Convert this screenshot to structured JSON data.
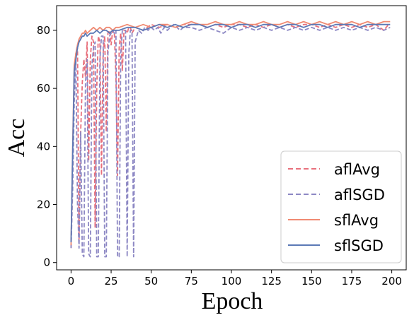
{
  "chart_data": {
    "type": "line",
    "title": "",
    "xlabel": "Epoch",
    "ylabel": "Acc",
    "xlim": [
      -9,
      209
    ],
    "ylim": [
      -2.5,
      88.5
    ],
    "xticks": [
      0,
      25,
      50,
      75,
      100,
      125,
      150,
      175,
      200
    ],
    "yticks": [
      0,
      20,
      40,
      60,
      80
    ],
    "grid": false,
    "legend_position": "lower-right",
    "series": [
      {
        "name": "aflAvg",
        "color": "#e8707c",
        "dash": "dashed",
        "points": [
          [
            0,
            5
          ],
          [
            1,
            30
          ],
          [
            2,
            60
          ],
          [
            3,
            72
          ],
          [
            4,
            75
          ],
          [
            5,
            8
          ],
          [
            6,
            45
          ],
          [
            7,
            62
          ],
          [
            8,
            70
          ],
          [
            9,
            64
          ],
          [
            10,
            76
          ],
          [
            11,
            35
          ],
          [
            12,
            70
          ],
          [
            13,
            78
          ],
          [
            14,
            76
          ],
          [
            15,
            12
          ],
          [
            16,
            60
          ],
          [
            17,
            78
          ],
          [
            18,
            76
          ],
          [
            19,
            30
          ],
          [
            20,
            72
          ],
          [
            21,
            78
          ],
          [
            22,
            45
          ],
          [
            23,
            79
          ],
          [
            24,
            80
          ],
          [
            25,
            75
          ],
          [
            26,
            80
          ],
          [
            27,
            79
          ],
          [
            28,
            64
          ],
          [
            29,
            30
          ],
          [
            30,
            74
          ],
          [
            31,
            79
          ],
          [
            32,
            66
          ],
          [
            33,
            80
          ],
          [
            34,
            80
          ],
          [
            35,
            79
          ],
          [
            36,
            81
          ],
          [
            37,
            81
          ],
          [
            38,
            79
          ],
          [
            40,
            81
          ],
          [
            45,
            80
          ],
          [
            50,
            82
          ],
          [
            55,
            81
          ],
          [
            60,
            82
          ],
          [
            65,
            81
          ],
          [
            70,
            82
          ],
          [
            75,
            82
          ],
          [
            80,
            82
          ],
          [
            85,
            81
          ],
          [
            90,
            82
          ],
          [
            95,
            81
          ],
          [
            100,
            82
          ],
          [
            105,
            82
          ],
          [
            110,
            81
          ],
          [
            115,
            82
          ],
          [
            120,
            81
          ],
          [
            125,
            82
          ],
          [
            130,
            81
          ],
          [
            135,
            82
          ],
          [
            140,
            81
          ],
          [
            145,
            82
          ],
          [
            150,
            82
          ],
          [
            155,
            81
          ],
          [
            160,
            82
          ],
          [
            165,
            81
          ],
          [
            170,
            82
          ],
          [
            175,
            81
          ],
          [
            180,
            82
          ],
          [
            185,
            81
          ],
          [
            190,
            82
          ],
          [
            195,
            80
          ],
          [
            198,
            82
          ]
        ]
      },
      {
        "name": "aflSGD",
        "color": "#8d88c4",
        "dash": "dashed",
        "points": [
          [
            0,
            5
          ],
          [
            1,
            25
          ],
          [
            2,
            55
          ],
          [
            3,
            70
          ],
          [
            4,
            20
          ],
          [
            5,
            5
          ],
          [
            6,
            45
          ],
          [
            7,
            3
          ],
          [
            8,
            2
          ],
          [
            9,
            62
          ],
          [
            10,
            70
          ],
          [
            11,
            3
          ],
          [
            12,
            2
          ],
          [
            13,
            68
          ],
          [
            14,
            74
          ],
          [
            15,
            76
          ],
          [
            16,
            2
          ],
          [
            17,
            2
          ],
          [
            18,
            70
          ],
          [
            19,
            78
          ],
          [
            20,
            78
          ],
          [
            21,
            2
          ],
          [
            22,
            2
          ],
          [
            23,
            72
          ],
          [
            24,
            78
          ],
          [
            25,
            79
          ],
          [
            26,
            80
          ],
          [
            27,
            79
          ],
          [
            28,
            80
          ],
          [
            29,
            2
          ],
          [
            30,
            2
          ],
          [
            31,
            72
          ],
          [
            32,
            80
          ],
          [
            33,
            80
          ],
          [
            34,
            80
          ],
          [
            35,
            2
          ],
          [
            36,
            72
          ],
          [
            37,
            80
          ],
          [
            38,
            80
          ],
          [
            39,
            2
          ],
          [
            40,
            76
          ],
          [
            42,
            80
          ],
          [
            44,
            79
          ],
          [
            46,
            81
          ],
          [
            48,
            80
          ],
          [
            50,
            81
          ],
          [
            52,
            80
          ],
          [
            54,
            81
          ],
          [
            56,
            79
          ],
          [
            58,
            81
          ],
          [
            60,
            80
          ],
          [
            62,
            81
          ],
          [
            64,
            82
          ],
          [
            66,
            81
          ],
          [
            68,
            80
          ],
          [
            70,
            81
          ],
          [
            75,
            81
          ],
          [
            80,
            80
          ],
          [
            85,
            81
          ],
          [
            90,
            80
          ],
          [
            95,
            79
          ],
          [
            100,
            81
          ],
          [
            105,
            80
          ],
          [
            110,
            81
          ],
          [
            115,
            80
          ],
          [
            120,
            81
          ],
          [
            125,
            80
          ],
          [
            130,
            81
          ],
          [
            135,
            80
          ],
          [
            140,
            81
          ],
          [
            145,
            80
          ],
          [
            150,
            81
          ],
          [
            155,
            80
          ],
          [
            160,
            81
          ],
          [
            165,
            80
          ],
          [
            170,
            81
          ],
          [
            175,
            80
          ],
          [
            180,
            81
          ],
          [
            185,
            80
          ],
          [
            190,
            81
          ],
          [
            195,
            80
          ],
          [
            199,
            81
          ]
        ]
      },
      {
        "name": "sflAvg",
        "color": "#f08a72",
        "dash": "solid",
        "points": [
          [
            0,
            6
          ],
          [
            1,
            40
          ],
          [
            2,
            68
          ],
          [
            3,
            72
          ],
          [
            4,
            75
          ],
          [
            5,
            77
          ],
          [
            6,
            78
          ],
          [
            7,
            79
          ],
          [
            8,
            79
          ],
          [
            9,
            80
          ],
          [
            10,
            79
          ],
          [
            12,
            80
          ],
          [
            14,
            81
          ],
          [
            16,
            80
          ],
          [
            18,
            81
          ],
          [
            20,
            80
          ],
          [
            22,
            81
          ],
          [
            24,
            81
          ],
          [
            26,
            80
          ],
          [
            28,
            81
          ],
          [
            30,
            81
          ],
          [
            35,
            82
          ],
          [
            40,
            81
          ],
          [
            45,
            82
          ],
          [
            50,
            81
          ],
          [
            55,
            82
          ],
          [
            60,
            82
          ],
          [
            65,
            81
          ],
          [
            70,
            82
          ],
          [
            75,
            83
          ],
          [
            80,
            82
          ],
          [
            85,
            82
          ],
          [
            90,
            83
          ],
          [
            95,
            82
          ],
          [
            100,
            82
          ],
          [
            105,
            83
          ],
          [
            110,
            82
          ],
          [
            115,
            82
          ],
          [
            120,
            83
          ],
          [
            125,
            82
          ],
          [
            130,
            82
          ],
          [
            135,
            83
          ],
          [
            140,
            82
          ],
          [
            145,
            83
          ],
          [
            150,
            82
          ],
          [
            155,
            83
          ],
          [
            160,
            82
          ],
          [
            165,
            83
          ],
          [
            170,
            82
          ],
          [
            175,
            83
          ],
          [
            180,
            82
          ],
          [
            185,
            83
          ],
          [
            190,
            82
          ],
          [
            195,
            83
          ],
          [
            199,
            83
          ]
        ]
      },
      {
        "name": "sflSGD",
        "color": "#5b79b6",
        "dash": "solid",
        "points": [
          [
            0,
            7
          ],
          [
            1,
            38
          ],
          [
            2,
            66
          ],
          [
            3,
            70
          ],
          [
            4,
            74
          ],
          [
            5,
            76
          ],
          [
            6,
            77
          ],
          [
            7,
            78
          ],
          [
            8,
            78
          ],
          [
            9,
            79
          ],
          [
            10,
            78
          ],
          [
            12,
            79
          ],
          [
            14,
            79
          ],
          [
            16,
            80
          ],
          [
            18,
            79
          ],
          [
            20,
            80
          ],
          [
            22,
            80
          ],
          [
            24,
            79
          ],
          [
            26,
            80
          ],
          [
            28,
            80
          ],
          [
            30,
            80
          ],
          [
            35,
            81
          ],
          [
            40,
            81
          ],
          [
            45,
            80
          ],
          [
            50,
            81
          ],
          [
            55,
            82
          ],
          [
            60,
            81
          ],
          [
            65,
            82
          ],
          [
            70,
            81
          ],
          [
            75,
            82
          ],
          [
            80,
            82
          ],
          [
            85,
            81
          ],
          [
            90,
            82
          ],
          [
            95,
            82
          ],
          [
            100,
            81
          ],
          [
            105,
            82
          ],
          [
            110,
            82
          ],
          [
            115,
            81
          ],
          [
            120,
            82
          ],
          [
            125,
            82
          ],
          [
            130,
            81
          ],
          [
            135,
            82
          ],
          [
            140,
            82
          ],
          [
            145,
            81
          ],
          [
            150,
            82
          ],
          [
            155,
            82
          ],
          [
            160,
            81
          ],
          [
            165,
            82
          ],
          [
            170,
            82
          ],
          [
            175,
            82
          ],
          [
            180,
            81
          ],
          [
            185,
            82
          ],
          [
            190,
            82
          ],
          [
            195,
            82
          ],
          [
            199,
            82
          ]
        ]
      }
    ]
  }
}
